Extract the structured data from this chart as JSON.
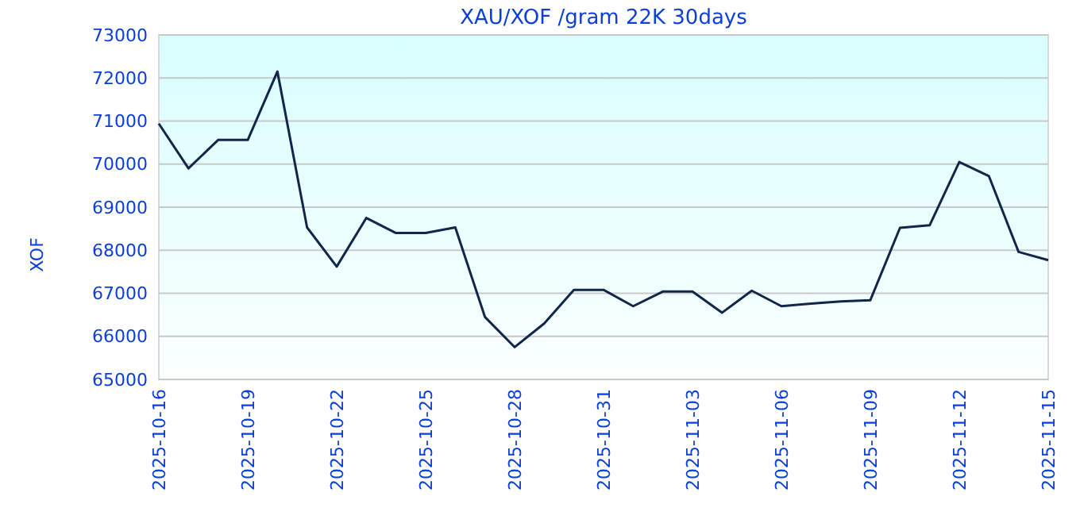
{
  "chart_data": {
    "type": "line",
    "title": "XAU/XOF /gram 22K 30days",
    "ylabel": "XOF",
    "x": [
      "2025-10-16",
      "2025-10-17",
      "2025-10-18",
      "2025-10-19",
      "2025-10-20",
      "2025-10-21",
      "2025-10-22",
      "2025-10-23",
      "2025-10-24",
      "2025-10-25",
      "2025-10-26",
      "2025-10-27",
      "2025-10-28",
      "2025-10-29",
      "2025-10-30",
      "2025-10-31",
      "2025-11-01",
      "2025-11-02",
      "2025-11-03",
      "2025-11-04",
      "2025-11-05",
      "2025-11-06",
      "2025-11-07",
      "2025-11-08",
      "2025-11-09",
      "2025-11-10",
      "2025-11-11",
      "2025-11-12",
      "2025-11-13",
      "2025-11-14",
      "2025-11-15"
    ],
    "series": [
      {
        "color": "#12264a",
        "values": [
          70940,
          69900,
          70560,
          70560,
          72150,
          68530,
          67620,
          68750,
          68400,
          68400,
          68530,
          66450,
          65750,
          66300,
          67080,
          67080,
          66700,
          67040,
          67040,
          66550,
          67060,
          66700,
          66760,
          66810,
          66840,
          68520,
          68580,
          70050,
          69720,
          67960,
          67770
        ]
      }
    ],
    "xlim": [
      "2025-10-16",
      "2025-11-15"
    ],
    "xticks": [
      "2025-10-16",
      "2025-10-19",
      "2025-10-22",
      "2025-10-25",
      "2025-10-28",
      "2025-10-31",
      "2025-11-03",
      "2025-11-06",
      "2025-11-09",
      "2025-11-12",
      "2025-11-15"
    ],
    "ylim": [
      65000,
      73000
    ],
    "yticks": [
      65000,
      66000,
      67000,
      68000,
      69000,
      70000,
      71000,
      72000,
      73000
    ],
    "grid": "y",
    "marker": "none",
    "line_style": "solid"
  }
}
